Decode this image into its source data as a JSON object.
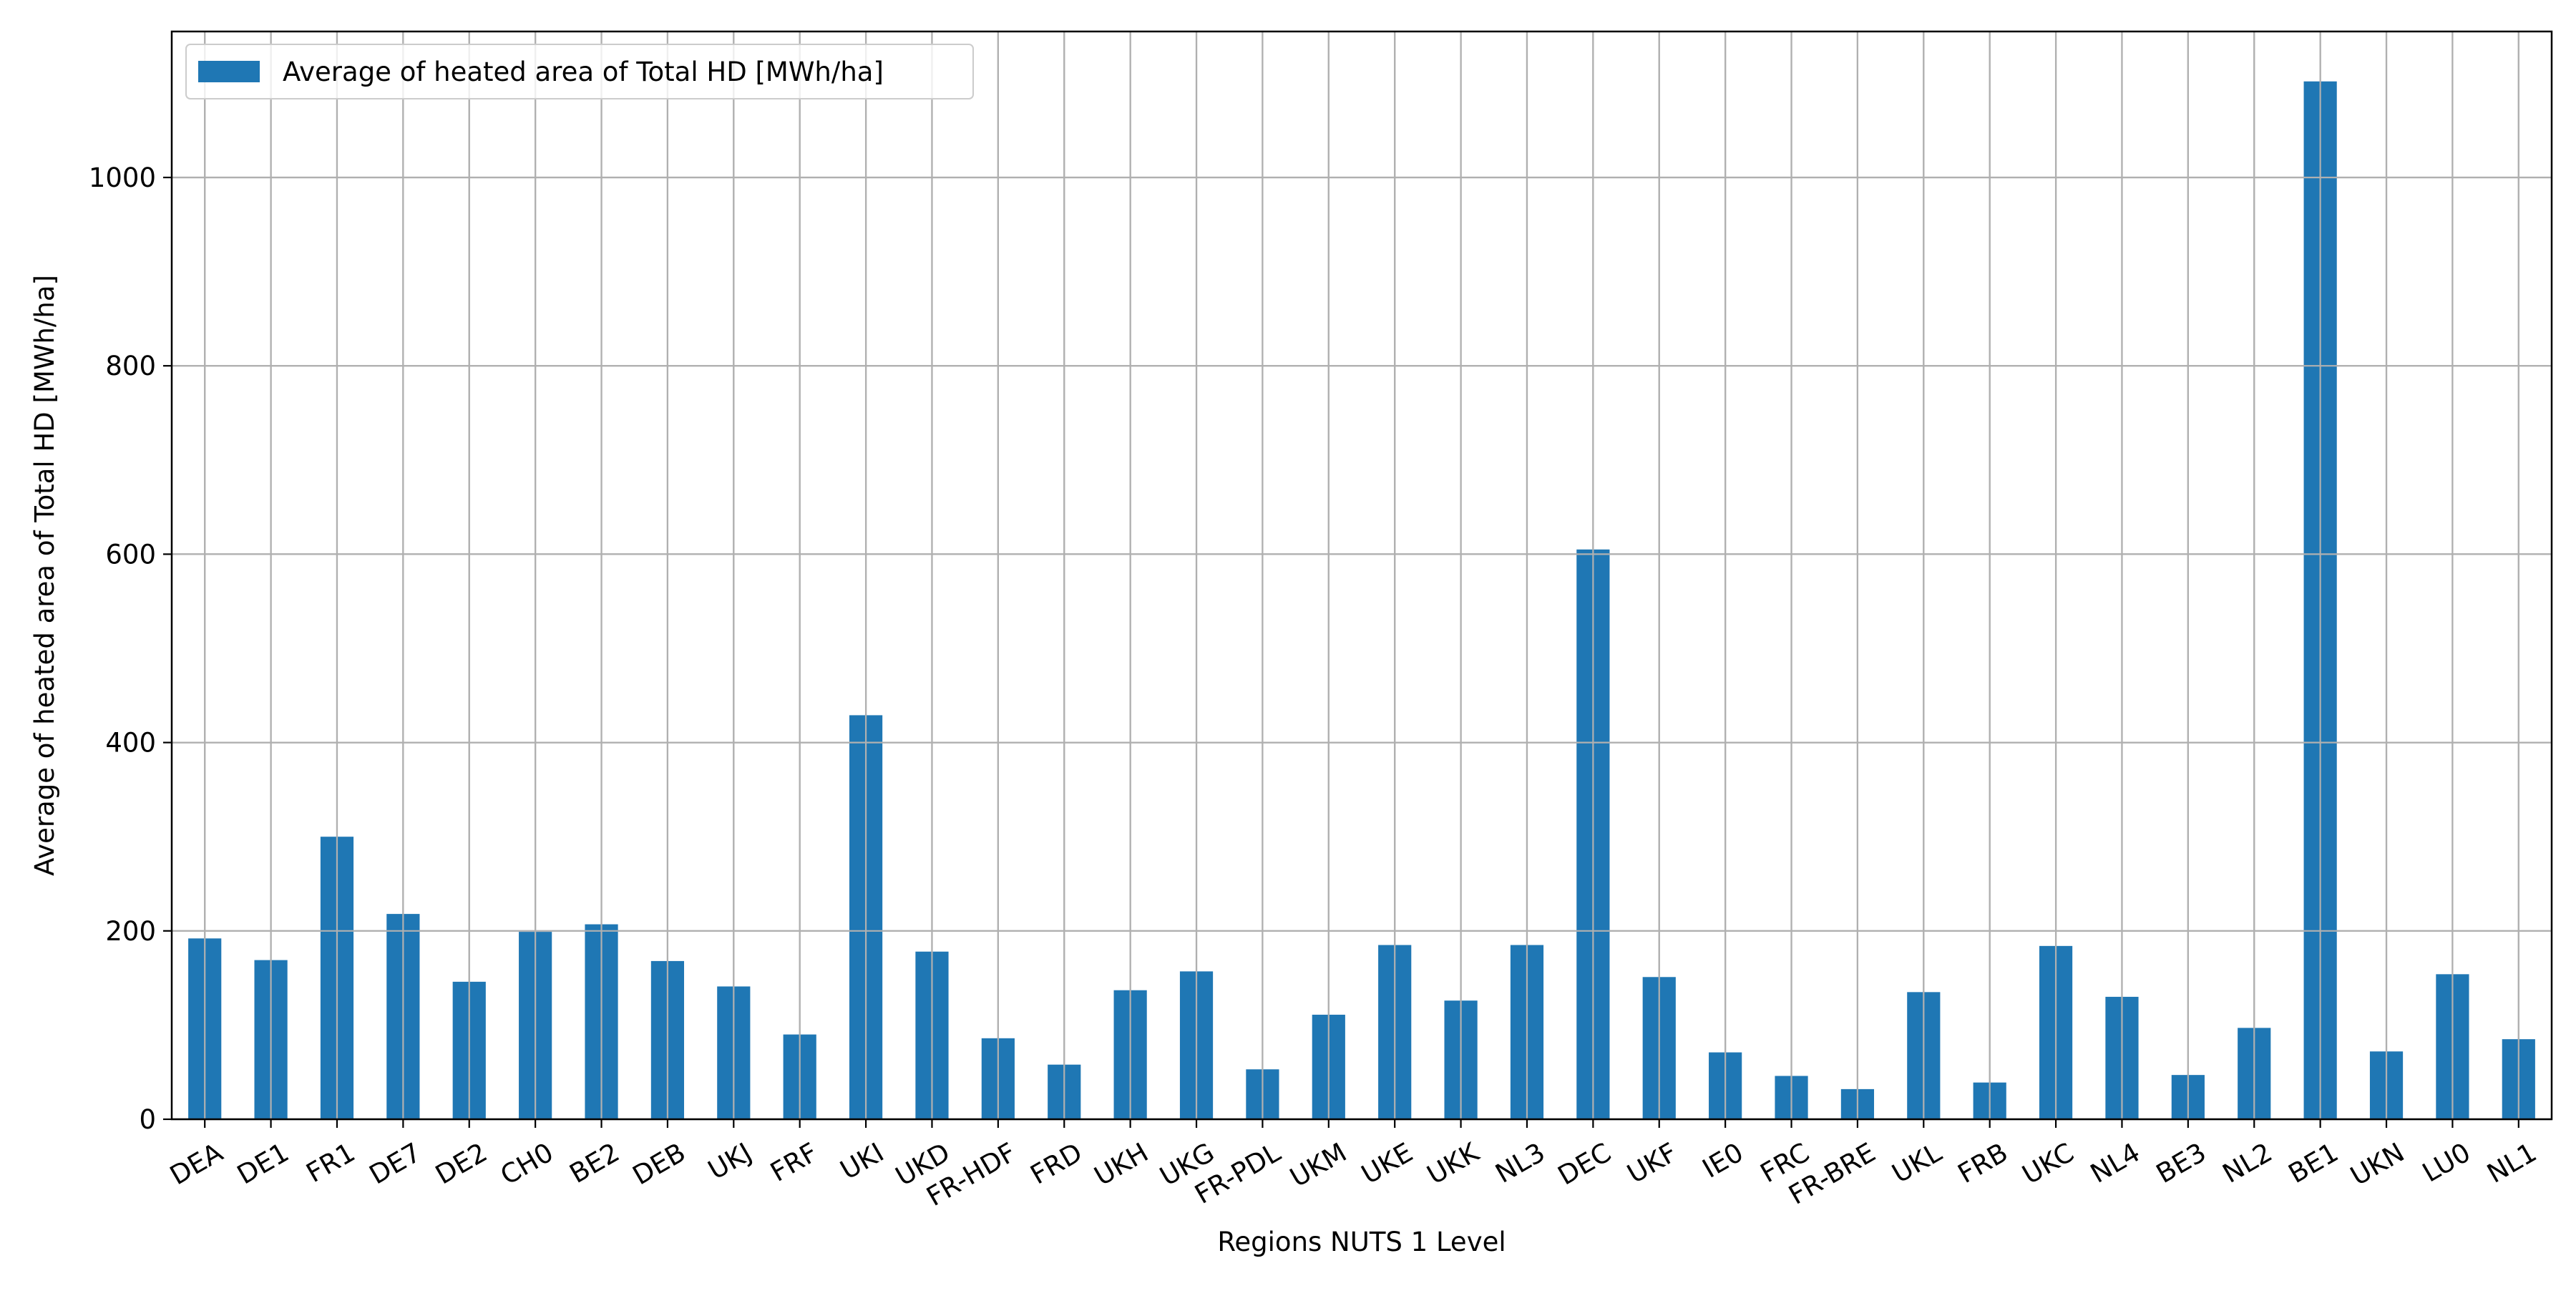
{
  "chart_data": {
    "type": "bar",
    "title": "",
    "xlabel": "Regions NUTS 1 Level",
    "ylabel": "Average of heated area of Total HD [MWh/ha]",
    "ylim": [
      0,
      1155
    ],
    "yticks": [
      0,
      200,
      400,
      600,
      800,
      1000
    ],
    "grid": true,
    "legend_position": "top-left",
    "bar_color": "#1f77b4",
    "categories": [
      "DEA",
      "DE1",
      "FR1",
      "DE7",
      "DE2",
      "CH0",
      "BE2",
      "DEB",
      "UKJ",
      "FRF",
      "UKI",
      "UKD",
      "FR-HDF",
      "FRD",
      "UKH",
      "UKG",
      "FR-PDL",
      "UKM",
      "UKE",
      "UKK",
      "NL3",
      "DEC",
      "UKF",
      "IE0",
      "FRC",
      "FR-BRE",
      "UKL",
      "FRB",
      "UKC",
      "NL4",
      "BE3",
      "NL2",
      "BE1",
      "UKN",
      "LU0",
      "NL1"
    ],
    "series": [
      {
        "name": "Average of heated area of Total HD [MWh/ha]",
        "values": [
          192,
          169,
          300,
          218,
          146,
          199,
          207,
          168,
          141,
          90,
          429,
          178,
          86,
          58,
          137,
          157,
          53,
          111,
          185,
          126,
          185,
          605,
          151,
          71,
          46,
          32,
          135,
          39,
          184,
          130,
          47,
          97,
          1102,
          72,
          154,
          85
        ]
      }
    ]
  }
}
